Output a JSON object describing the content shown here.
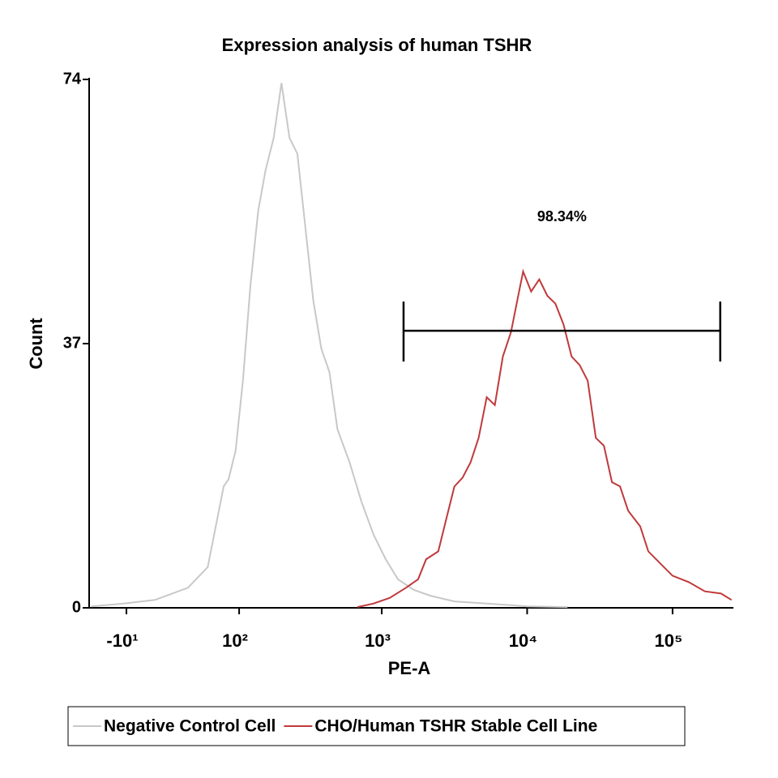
{
  "chart_data": {
    "type": "histogram-overlay",
    "title": "Expression analysis of human TSHR",
    "xlabel": "PE-A",
    "ylabel": "Count",
    "xscale": "logicle",
    "xlim": [
      -40,
      262144
    ],
    "xticks": [
      {
        "value": -10,
        "label": "-10¹"
      },
      {
        "value": 100,
        "label": "10²"
      },
      {
        "value": 1000,
        "label": "10³"
      },
      {
        "value": 10000,
        "label": "10⁴"
      },
      {
        "value": 100000,
        "label": "10⁵"
      }
    ],
    "ylim": [
      0,
      74
    ],
    "yticks": [
      0,
      37,
      74
    ],
    "legend": "bottom",
    "series": [
      {
        "name": "Negative Control Cell",
        "color": "#c8c8c8",
        "x": [
          -38,
          -12,
          10,
          36,
          56,
          76,
          83,
          94,
          107,
          121,
          138,
          156,
          178,
          202,
          230,
          261,
          297,
          337,
          383,
          436,
          495,
          600,
          727,
          880,
          1066,
          1292,
          1668,
          2154,
          3162,
          5275,
          10000,
          18960
        ],
        "values": [
          0.2,
          0.6,
          1.1,
          2.8,
          5.7,
          17,
          18,
          22,
          32,
          45,
          55.6,
          61.3,
          65.8,
          73.5,
          65.8,
          63.6,
          53.3,
          43,
          36.3,
          33,
          25,
          20.4,
          14.8,
          10.2,
          6.8,
          4,
          2.5,
          1.7,
          0.9,
          0.6,
          0.2,
          0.1
        ]
      },
      {
        "name": "CHO/Human TSHR Stable Cell Line",
        "color": "#c0393b",
        "x": [
          681,
          880,
          1136,
          1468,
          1778,
          2021,
          2448,
          2783,
          3162,
          3594,
          4084,
          4642,
          5275,
          5995,
          6813,
          7743,
          8799,
          9380,
          10660,
          12115,
          13770,
          15640,
          17780,
          20210,
          22960,
          26100,
          29660,
          33710,
          38310,
          43540,
          49480,
          59950,
          68130,
          82540,
          100000,
          129200,
          166800,
          215400,
          254500
        ],
        "values": [
          0.1,
          0.6,
          1.4,
          2.8,
          4,
          6.8,
          7.9,
          12.5,
          17,
          18.2,
          20.4,
          23.8,
          29.5,
          28.4,
          35.2,
          38.6,
          44.3,
          47.1,
          44.3,
          46,
          43.7,
          42.6,
          39.7,
          35.2,
          34,
          31.8,
          23.8,
          22.7,
          17.6,
          17,
          13.6,
          11.4,
          7.9,
          6.2,
          4.5,
          3.6,
          2.3,
          2,
          1.1
        ]
      }
    ],
    "gate": {
      "label": "98.34%",
      "range": [
        1413,
        212800
      ],
      "y": 38.8
    }
  }
}
